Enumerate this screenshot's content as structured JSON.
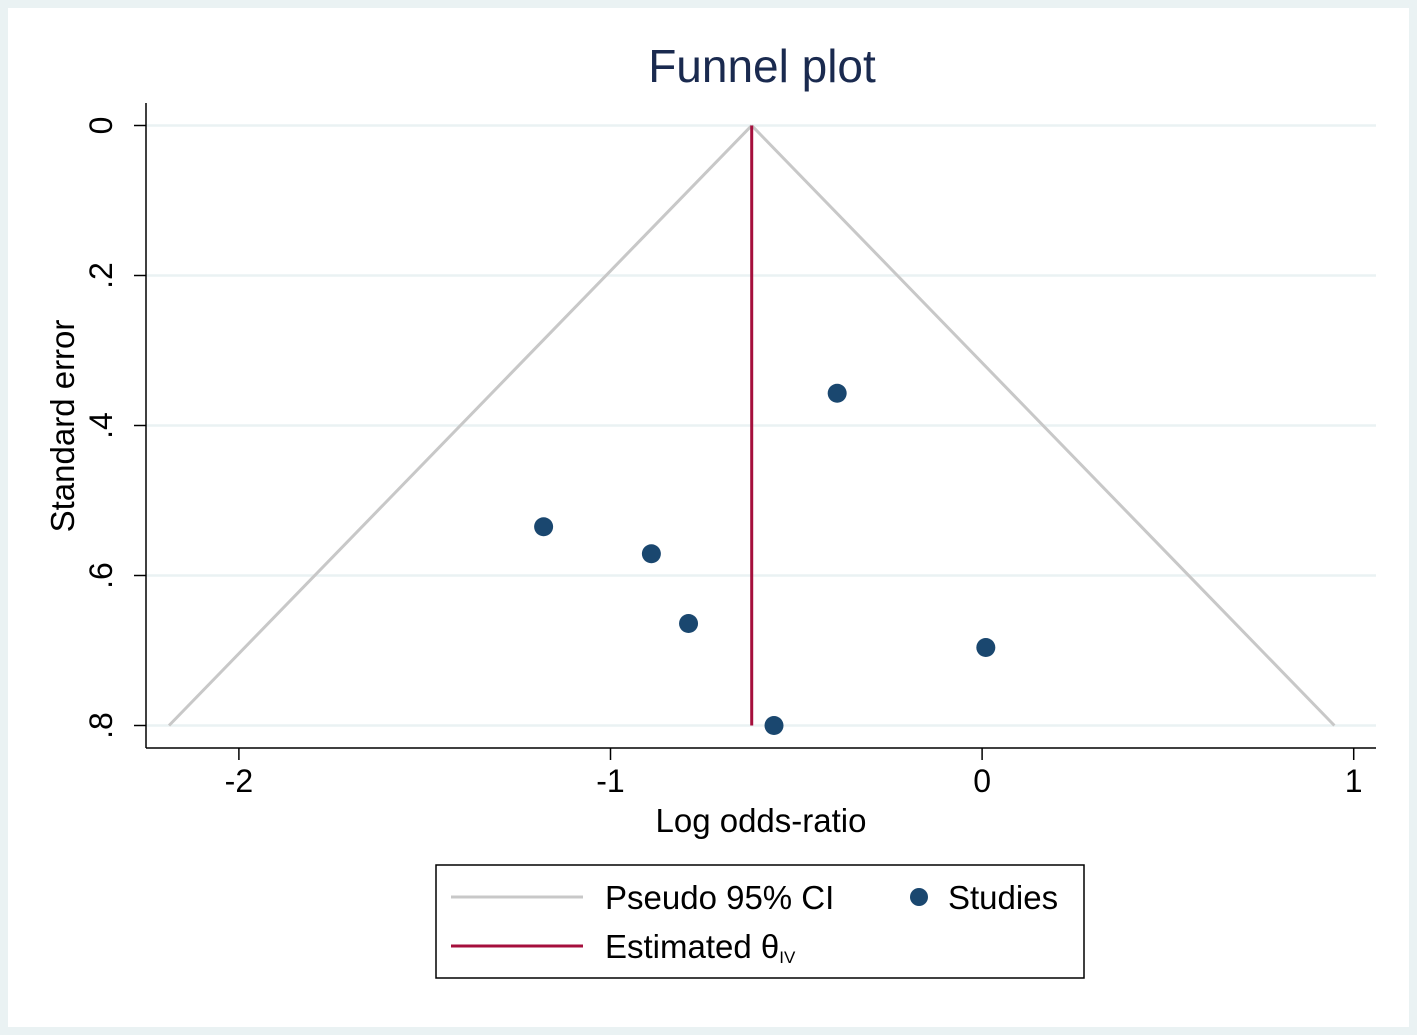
{
  "chart_data": {
    "type": "scatter",
    "title": "Funnel plot",
    "xlabel": "Log odds-ratio",
    "ylabel": "Standard error",
    "xlim": [
      -2.25,
      1.06
    ],
    "ylim": [
      0.83,
      -0.03
    ],
    "y_axis_inverted": true,
    "x_ticks": [
      {
        "value": -2,
        "label": "-2"
      },
      {
        "value": -1,
        "label": "-1"
      },
      {
        "value": 0,
        "label": "0"
      },
      {
        "value": 1,
        "label": "1"
      }
    ],
    "y_ticks": [
      {
        "value": 0,
        "label": "0"
      },
      {
        "value": 0.2,
        "label": ".2"
      },
      {
        "value": 0.4,
        "label": ".4"
      },
      {
        "value": 0.6,
        "label": ".6"
      },
      {
        "value": 0.8,
        "label": ".8"
      }
    ],
    "grid": true,
    "estimate": -0.62,
    "max_se": 0.8,
    "ci_multiplier": 1.96,
    "studies": [
      {
        "x": -0.39,
        "y": 0.357
      },
      {
        "x": -1.18,
        "y": 0.535
      },
      {
        "x": -0.89,
        "y": 0.571
      },
      {
        "x": -0.79,
        "y": 0.664
      },
      {
        "x": 0.01,
        "y": 0.696
      },
      {
        "x": -0.56,
        "y": 0.8
      }
    ],
    "legend": {
      "position": "bottom",
      "items": [
        {
          "key": "ci",
          "label": "Pseudo 95% CI",
          "color": "#c8c8c8",
          "marker": "line"
        },
        {
          "key": "studies",
          "label": "Studies",
          "color": "#1a476f",
          "marker": "circle"
        },
        {
          "key": "estimate",
          "label": "Estimated θ",
          "subscript": "IV",
          "color": "#a50f3c",
          "marker": "line"
        }
      ]
    },
    "colors": {
      "background_outer": "#eaf2f3",
      "plot_background": "#ffffff",
      "grid": "#eaf2f3",
      "title": "#1a2a4f",
      "points": "#1a476f",
      "ci": "#c8c8c8",
      "estimate": "#a50f3c"
    }
  }
}
